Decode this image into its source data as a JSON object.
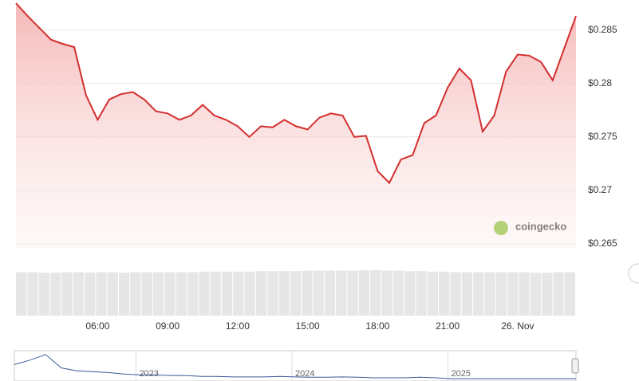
{
  "chart_data": {
    "type": "line",
    "watermark": "coingecko",
    "color": "#d32f2f",
    "categories": [
      null,
      null,
      null,
      null,
      null,
      null,
      null,
      "06:00",
      null,
      null,
      null,
      null,
      null,
      "09:00",
      null,
      null,
      null,
      null,
      null,
      "12:00",
      null,
      null,
      null,
      null,
      null,
      "15:00",
      null,
      null,
      null,
      null,
      null,
      "18:00",
      null,
      null,
      null,
      null,
      null,
      "21:00",
      null,
      null,
      null,
      null,
      null,
      "26. Nov",
      null,
      null,
      null,
      null,
      null
    ],
    "values": [
      0.2875,
      0.2863,
      0.2852,
      0.2841,
      0.2837,
      0.2834,
      0.2789,
      0.2766,
      0.2785,
      0.279,
      0.2792,
      0.2785,
      0.2774,
      0.2772,
      0.2766,
      0.277,
      0.278,
      0.277,
      0.2766,
      0.276,
      0.275,
      0.276,
      0.2759,
      0.2766,
      0.276,
      0.2757,
      0.2768,
      0.2772,
      0.277,
      0.275,
      0.2751,
      0.2718,
      0.2707,
      0.2729,
      0.2733,
      0.2763,
      0.277,
      0.2796,
      0.2814,
      0.2803,
      0.2755,
      0.277,
      0.2811,
      0.2827,
      0.2826,
      0.282,
      0.2803,
      0.2833,
      0.2863
    ],
    "ylim": [
      0.265,
      0.2878
    ],
    "yticks": [
      {
        "value": 0.265,
        "label": "$0.265"
      },
      {
        "value": 0.27,
        "label": "$0.27"
      },
      {
        "value": 0.275,
        "label": "$0.275"
      },
      {
        "value": 0.28,
        "label": "$0.28"
      },
      {
        "value": 0.285,
        "label": "$0.285"
      }
    ],
    "grid": true,
    "volume": {
      "color": "#e6e6e6",
      "ylim": [
        0,
        100
      ],
      "values": [
        88,
        88,
        87,
        87,
        88,
        88,
        87,
        88,
        88,
        87,
        88,
        88,
        88,
        88,
        88,
        88,
        89,
        89,
        89,
        89,
        89,
        90,
        90,
        90,
        90,
        91,
        91,
        91,
        91,
        91,
        92,
        92,
        91,
        91,
        90,
        90,
        89,
        89,
        88,
        88,
        88,
        88,
        88,
        88,
        88,
        87,
        87,
        88,
        88
      ]
    },
    "navigator": {
      "color": "#3b5998",
      "ylim": [
        0,
        1
      ],
      "categories": [
        null,
        null,
        null,
        null,
        null,
        null,
        null,
        null,
        "2023",
        null,
        null,
        null,
        null,
        null,
        null,
        null,
        null,
        null,
        "2024",
        null,
        null,
        null,
        null,
        null,
        null,
        null,
        null,
        null,
        "2025",
        null,
        null,
        null,
        null,
        null,
        null,
        null,
        null
      ],
      "values": [
        0.53,
        0.68,
        0.87,
        0.42,
        0.32,
        0.29,
        0.26,
        0.21,
        0.18,
        0.18,
        0.16,
        0.16,
        0.13,
        0.13,
        0.11,
        0.11,
        0.11,
        0.13,
        0.11,
        0.1,
        0.1,
        0.11,
        0.1,
        0.08,
        0.08,
        0.08,
        0.1,
        0.08,
        0.05,
        0.05,
        0.05,
        0.05,
        0.05,
        0.05,
        0.05,
        0.05,
        0.05
      ]
    }
  }
}
